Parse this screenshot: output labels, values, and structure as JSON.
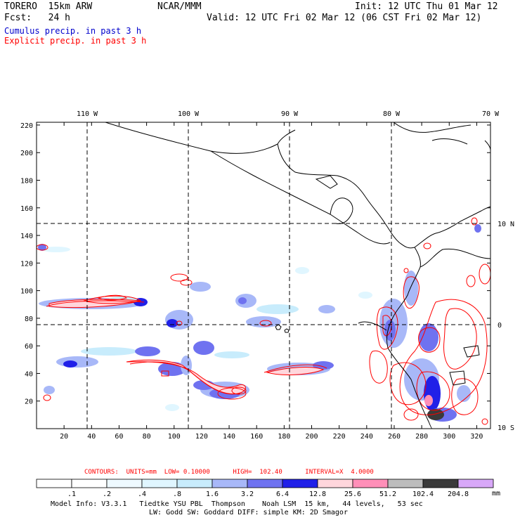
{
  "header": {
    "model": "TORERO  15km ARW",
    "agency": "NCAR/MMM",
    "init": "Init: 12 UTC Thu 01 Mar 12",
    "fcst": "Fcst:   24 h",
    "valid": "Valid: 12 UTC Fri 02 Mar 12 (06 CST Fri 02 Mar 12)"
  },
  "legend": {
    "cumulus": "Cumulus precip. in past 3 h",
    "explicit": "Explicit precip. in past 3 h",
    "cumulus_color": "#0000cc",
    "explicit_color": "#ff0000"
  },
  "map": {
    "top_lon_labels": [
      "110 W",
      "100 W",
      "90 W",
      "80 W",
      "70 W"
    ],
    "right_lat_labels": [
      "10 N",
      "0",
      "10 S"
    ],
    "x_ticks": [
      "20",
      "40",
      "60",
      "80",
      "100",
      "120",
      "140",
      "160",
      "180",
      "200",
      "220",
      "240",
      "260",
      "280",
      "300",
      "320"
    ],
    "y_ticks": [
      "20",
      "40",
      "60",
      "80",
      "100",
      "120",
      "140",
      "160",
      "180",
      "200",
      "220"
    ],
    "x_range": [
      0,
      330
    ],
    "y_range": [
      0,
      222
    ]
  },
  "contours_info": {
    "label": "CONTOURS:  UNITS=mm  LOW= 0.10000      HIGH=  102.40      INTERVAL=X  4.0000"
  },
  "colorbar": {
    "thresholds": [
      ".1",
      ".2",
      ".4",
      ".8",
      "1.6",
      "3.2",
      "6.4",
      "12.8",
      "25.6",
      "51.2",
      "102.4",
      "204.8"
    ],
    "colors": [
      "#ffffff",
      "#ffffff",
      "#eef9ff",
      "#e0f6ff",
      "#c8ecfc",
      "#a8b8f8",
      "#6f72f0",
      "#2020e8",
      "#ffd6dc",
      "#ff8fb8",
      "#bcbcbc",
      "#3a3a3a",
      "#d8a8f8"
    ],
    "units": "mm"
  },
  "footer": {
    "line1": "Model Info: V3.3.1   Tiedtke YSU PBL  Thompson    Noah LSM  15 km,   44 levels,   53 sec",
    "line2": "LW: Godd SW: Goddard DIFF: simple KM: 2D Smagor"
  }
}
